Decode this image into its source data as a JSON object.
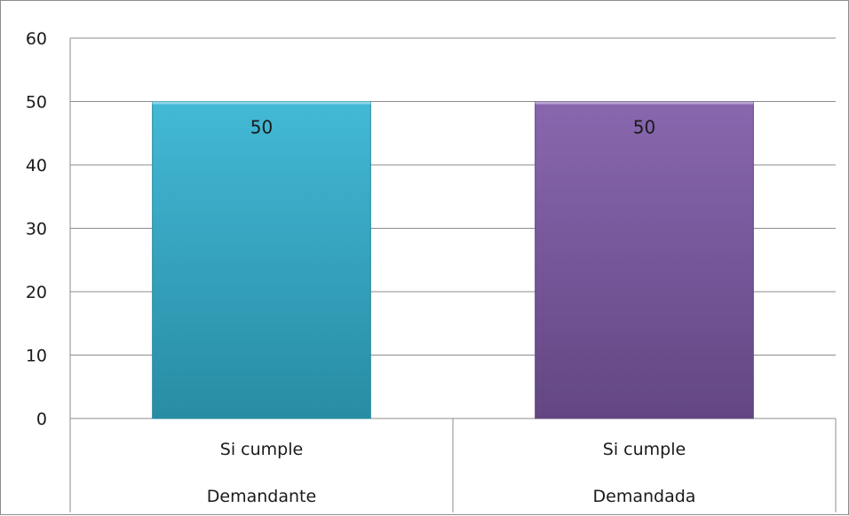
{
  "chart_data": {
    "type": "bar",
    "categories": [
      [
        "Si cumple",
        "Demandante"
      ],
      [
        "Si cumple",
        "Demandada"
      ]
    ],
    "values": [
      50,
      50
    ],
    "data_labels": [
      "50",
      "50"
    ],
    "colors": [
      "#33b3d2",
      "#7f5aa8"
    ],
    "ylim": [
      0,
      60
    ],
    "yticks": [
      0,
      10,
      20,
      30,
      40,
      50,
      60
    ],
    "ytick_labels": [
      "0",
      "10",
      "20",
      "30",
      "40",
      "50",
      "60"
    ],
    "title": "",
    "xlabel": "",
    "ylabel": "",
    "grid": true,
    "legend": "none"
  }
}
